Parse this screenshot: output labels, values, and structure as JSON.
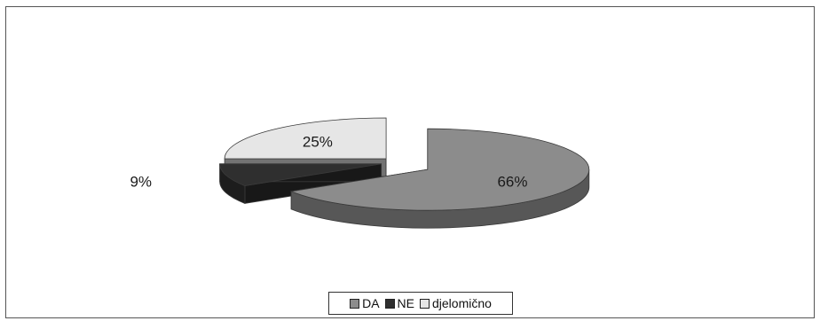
{
  "chart_data": {
    "type": "pie",
    "style": "3d-exploded",
    "title": "",
    "series": [
      {
        "slices": [
          {
            "label": "DA",
            "value": 66,
            "display": "66%",
            "color": "#8c8c8c"
          },
          {
            "label": "NE",
            "value": 9,
            "display": "9%",
            "color": "#2f2f2f"
          },
          {
            "label": "djelomično",
            "value": 25,
            "display": "25%",
            "color": "#e6e6e6"
          }
        ]
      }
    ],
    "legend_position": "bottom-center"
  }
}
